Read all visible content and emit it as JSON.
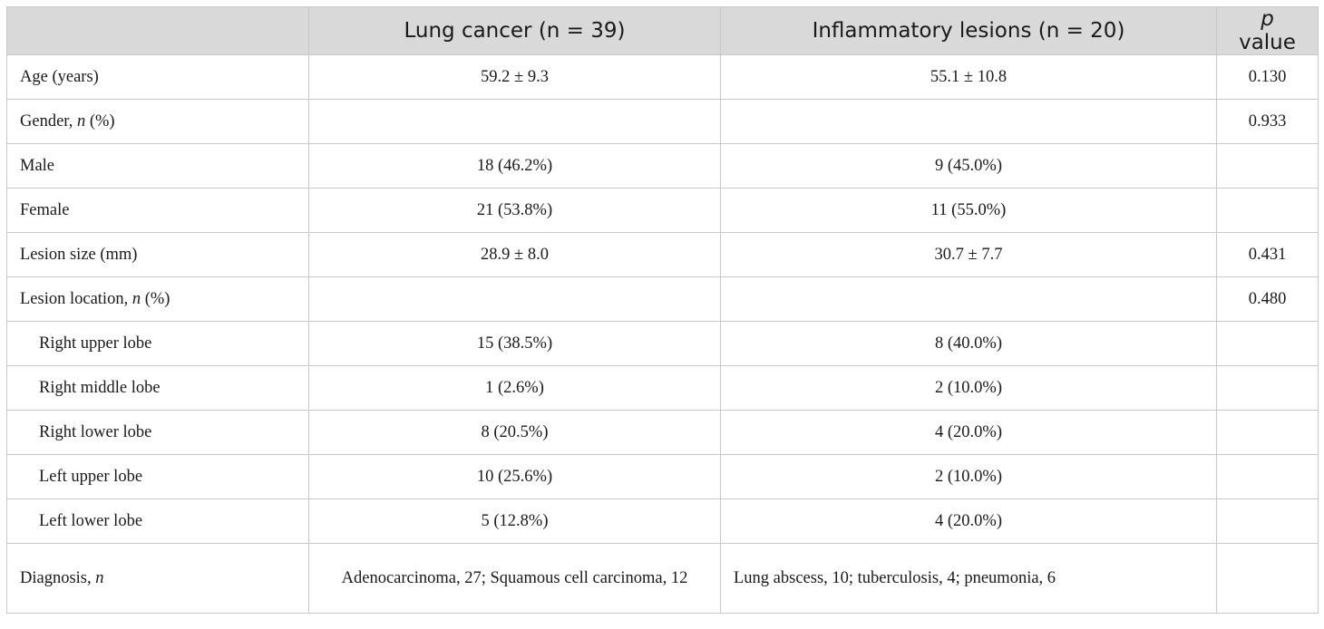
{
  "header": {
    "col0": "",
    "col1": "Lung cancer (n = 39)",
    "col2": "Inflammatory lesions (n = 20)",
    "col3_italic": "p",
    "col3_rest": " value"
  },
  "rows": [
    {
      "label": "Age (years)",
      "lung": "59.2 ± 9.3",
      "inflam": "55.1 ± 10.8",
      "p": "0.130"
    },
    {
      "label_pre": "Gender, ",
      "label_italic": "n",
      "label_post": " (%)",
      "lung": "",
      "inflam": "",
      "p": "0.933"
    },
    {
      "label": "Male",
      "lung": "18 (46.2%)",
      "inflam": "9 (45.0%)",
      "p": ""
    },
    {
      "label": "Female",
      "lung": "21 (53.8%)",
      "inflam": "11 (55.0%)",
      "p": ""
    },
    {
      "label": "Lesion size (mm)",
      "lung": "28.9 ± 8.0",
      "inflam": "30.7 ± 7.7",
      "p": "0.431"
    },
    {
      "label_pre": "Lesion location, ",
      "label_italic": "n",
      "label_post": " (%)",
      "lung": "",
      "inflam": "",
      "p": "0.480"
    },
    {
      "label": "Right upper lobe",
      "lung": "15 (38.5%)",
      "inflam": "8 (40.0%)",
      "p": ""
    },
    {
      "label": "Right middle lobe",
      "lung": "1 (2.6%)",
      "inflam": "2 (10.0%)",
      "p": ""
    },
    {
      "label": "Right lower lobe",
      "lung": "8 (20.5%)",
      "inflam": "4 (20.0%)",
      "p": ""
    },
    {
      "label": "Left upper lobe",
      "lung": "10 (25.6%)",
      "inflam": "2 (10.0%)",
      "p": ""
    },
    {
      "label": "Left lower lobe",
      "lung": "5 (12.8%)",
      "inflam": "4 (20.0%)",
      "p": ""
    },
    {
      "label_pre": "Diagnosis, ",
      "label_italic": "n",
      "lung": "Adenocarcinoma, 27; Squamous cell carcinoma, 12",
      "inflam": "Lung abscess, 10; tuberculosis, 4; pneumonia, 6",
      "p": ""
    }
  ]
}
